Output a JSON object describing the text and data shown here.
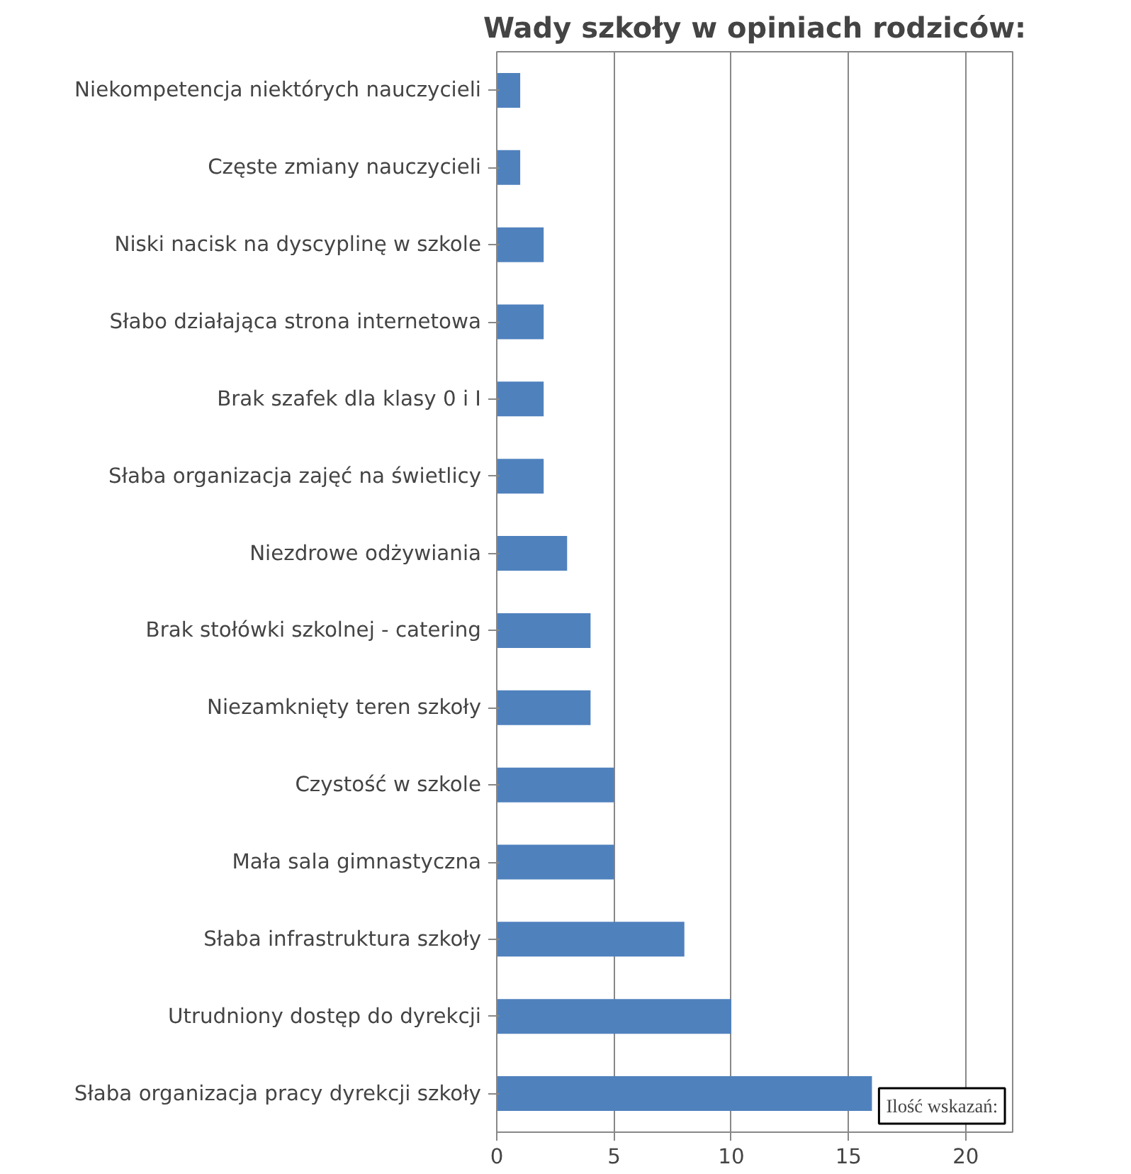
{
  "chart_data": {
    "type": "bar",
    "orientation": "horizontal",
    "title": "Wady szkoły w opiniach rodziców:",
    "categories": [
      "Niekompetencja niektórych nauczycieli",
      "Częste zmiany nauczycieli",
      "Niski nacisk na dyscyplinę w szkole",
      "Słabo działająca strona internetowa",
      "Brak szafek dla klasy 0 i I",
      "Słaba organizacja zajęć na świetlicy",
      "Niezdrowe odżywiania",
      "Brak stołówki szkolnej - catering",
      "Niezamknięty teren szkoły",
      "Czystość w szkole",
      "Mała sala gimnastyczna",
      "Słaba infrastruktura szkoły",
      "Utrudniony dostęp do dyrekcji",
      "Słaba organizacja pracy dyrekcji szkoły"
    ],
    "values": [
      1,
      1,
      2,
      2,
      2,
      2,
      3,
      4,
      4,
      5,
      5,
      8,
      10,
      16
    ],
    "color": "#4f81bd",
    "xlim": [
      0,
      22
    ],
    "xticks": [
      0,
      5,
      10,
      15,
      20
    ],
    "grid": "x",
    "annotations": [
      "Ilość wskazań:"
    ]
  }
}
